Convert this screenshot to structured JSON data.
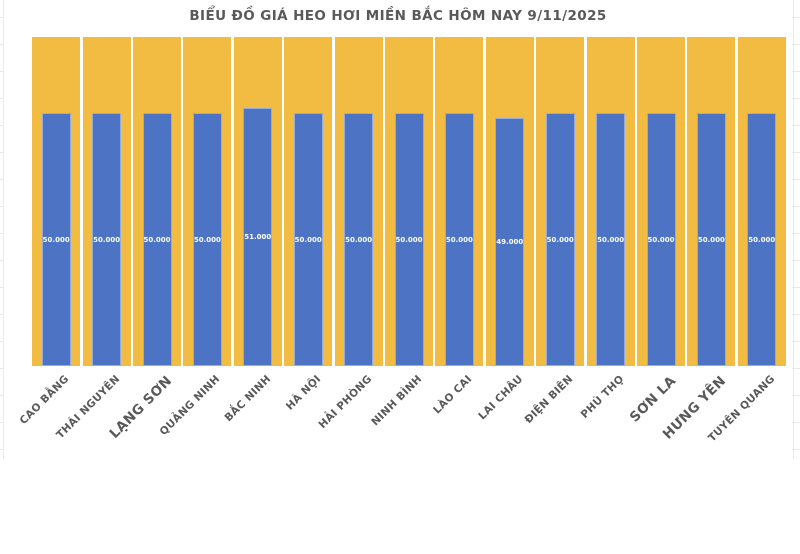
{
  "colors": {
    "page_background": "#FFFFFF",
    "bar_blue": "#4D73C5",
    "bar_yellow": "#F2BB41",
    "value_label_text": "#FFFFFF",
    "axis_label_text": "#595959",
    "title_text": "#595959",
    "worksheet_gridline": "#E9E9E9"
  },
  "chart_data": {
    "type": "bar",
    "title": "BIỂU ĐỒ GIÁ HEO HƠI MIỀN BẮC HÔM NAY 9/11/2025",
    "categories": [
      "CAO BẰNG",
      "THÁI NGUYÊN",
      "LẠNG SƠN",
      "QUẢNG NINH",
      "BẮC NINH",
      "HÀ NỘI",
      "HẢI PHÒNG",
      "NINH BÌNH",
      "LÀO CAI",
      "LAI CHÂU",
      "ĐIỆN BIÊN",
      "PHÚ THỌ",
      "SƠN LA",
      "HƯNG YÊN",
      "TUYÊN QUANG"
    ],
    "values": [
      50000,
      50000,
      50000,
      50000,
      51000,
      50000,
      50000,
      50000,
      50000,
      49000,
      50000,
      50000,
      50000,
      50000,
      50000
    ],
    "value_labels": [
      "50.000",
      "50.000",
      "50.000",
      "50.000",
      "51.000",
      "50.000",
      "50.000",
      "50.000",
      "50.000",
      "49.000",
      "50.000",
      "50.000",
      "50.000",
      "50.000",
      "50.000"
    ],
    "xlabel": "",
    "ylabel": "",
    "ylim": [
      0,
      65000
    ],
    "backdrop_bar_value": 65000,
    "grid": false,
    "legend": "none",
    "x_tick_rotation": -45,
    "large_font_categories": [
      "LẠNG SƠN",
      "SƠN LA",
      "HƯNG YÊN"
    ]
  }
}
